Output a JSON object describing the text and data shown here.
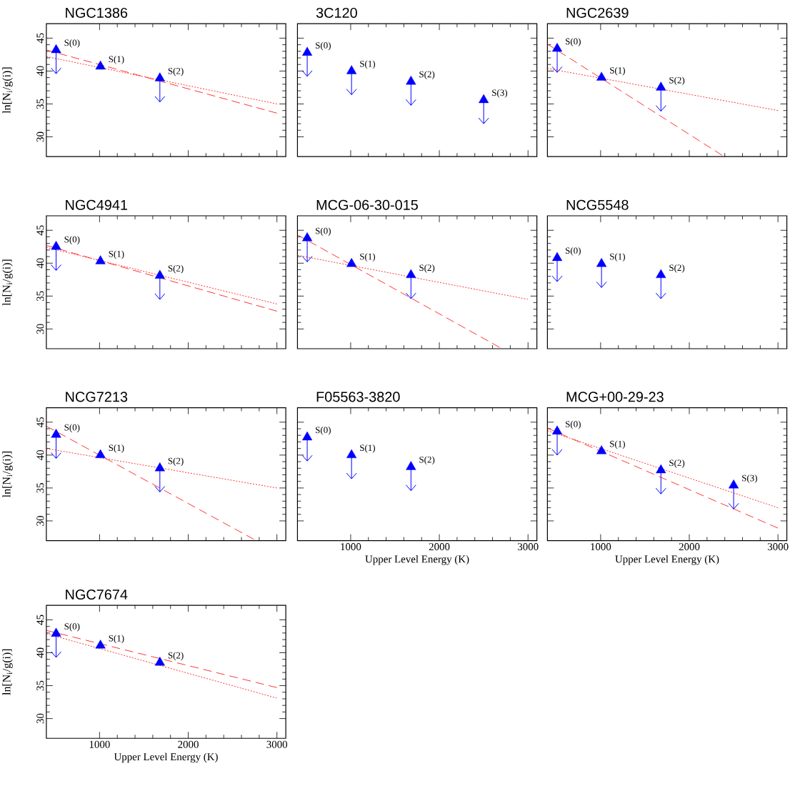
{
  "chart_data": [
    {
      "type": "scatter",
      "title": "NGC1386",
      "ylabel": "ln[N$_{i}$/g(i)]",
      "xlim": [
        400,
        3100
      ],
      "ylim": [
        27,
        47.2
      ],
      "xticks": [
        1000,
        2000,
        3000
      ],
      "yticks": [
        30,
        35,
        40,
        45
      ],
      "tick_labels": "y",
      "series": [
        {
          "marker": "triangle",
          "color": "#0000ff",
          "x": [
            510,
            1010,
            1680
          ],
          "values": [
            43.2,
            40.7,
            38.9
          ],
          "errors": [
            [
              39.6,
              43.2
            ],
            null,
            [
              35.3,
              38.9
            ]
          ]
        },
        {
          "type": "line",
          "line_style": "dashed",
          "color": "#ff0000",
          "x": [
            400,
            3000
          ],
          "values": [
            43.2,
            33.6
          ]
        },
        {
          "type": "line",
          "line_style": "dotted",
          "color": "#ff0000",
          "x": [
            400,
            3000
          ],
          "values": [
            42.2,
            35.0
          ]
        }
      ],
      "annotations": [
        {
          "text": "S(0)",
          "x": 510,
          "y": 43.2
        },
        {
          "text": "S(1)",
          "x": 1010,
          "y": 40.7
        },
        {
          "text": "S(2)",
          "x": 1680,
          "y": 38.9
        }
      ]
    },
    {
      "type": "scatter",
      "title": "3C120",
      "xlim": [
        400,
        3100
      ],
      "ylim": [
        27,
        47.2
      ],
      "xticks": [
        1000,
        2000,
        3000
      ],
      "yticks": [
        30,
        35,
        40,
        45
      ],
      "tick_labels": false,
      "series": [
        {
          "marker": "triangle",
          "color": "#0000ff",
          "x": [
            510,
            1010,
            1680,
            2500
          ],
          "values": [
            42.8,
            40.0,
            38.4,
            35.6
          ],
          "errors": [
            [
              39.2,
              42.8
            ],
            [
              36.4,
              40.0
            ],
            [
              34.8,
              38.4
            ],
            [
              32.0,
              35.6
            ]
          ]
        }
      ],
      "annotations": [
        {
          "text": "S(0)",
          "x": 510,
          "y": 42.8
        },
        {
          "text": "S(1)",
          "x": 1010,
          "y": 40.0
        },
        {
          "text": "S(2)",
          "x": 1680,
          "y": 38.4
        },
        {
          "text": "S(3)",
          "x": 2500,
          "y": 35.6
        }
      ]
    },
    {
      "type": "scatter",
      "title": "NGC2639",
      "xlim": [
        400,
        3100
      ],
      "ylim": [
        27,
        47.2
      ],
      "xticks": [
        1000,
        2000,
        3000
      ],
      "yticks": [
        30,
        35,
        40,
        45
      ],
      "tick_labels": false,
      "series": [
        {
          "marker": "triangle",
          "color": "#0000ff",
          "x": [
            510,
            1010,
            1680
          ],
          "values": [
            43.4,
            39.0,
            37.5
          ],
          "errors": [
            [
              39.8,
              43.4
            ],
            null,
            [
              33.9,
              37.5
            ]
          ]
        },
        {
          "type": "line",
          "line_style": "dashed",
          "color": "#ff0000",
          "x": [
            400,
            2370
          ],
          "values": [
            44.1,
            27.2
          ]
        },
        {
          "type": "line",
          "line_style": "dotted",
          "color": "#ff0000",
          "x": [
            400,
            3000
          ],
          "values": [
            40.4,
            34.0
          ]
        }
      ],
      "annotations": [
        {
          "text": "S(0)",
          "x": 510,
          "y": 43.4
        },
        {
          "text": "S(1)",
          "x": 1010,
          "y": 39.0
        },
        {
          "text": "S(2)",
          "x": 1680,
          "y": 37.5
        }
      ]
    },
    {
      "type": "scatter",
      "title": "NGC4941",
      "ylabel": "ln[N$_{i}$/g(i)]",
      "xlim": [
        400,
        3100
      ],
      "ylim": [
        27,
        47.2
      ],
      "xticks": [
        1000,
        2000,
        3000
      ],
      "yticks": [
        30,
        35,
        40,
        45
      ],
      "tick_labels": "y",
      "series": [
        {
          "marker": "triangle",
          "color": "#0000ff",
          "x": [
            510,
            1010,
            1680
          ],
          "values": [
            42.5,
            40.3,
            38.1
          ],
          "errors": [
            [
              38.9,
              42.5
            ],
            null,
            [
              34.5,
              38.1
            ]
          ]
        },
        {
          "type": "line",
          "line_style": "dashed",
          "color": "#ff0000",
          "x": [
            400,
            3000
          ],
          "values": [
            42.7,
            32.7
          ]
        },
        {
          "type": "line",
          "line_style": "dotted",
          "color": "#ff0000",
          "x": [
            400,
            3000
          ],
          "values": [
            42.4,
            33.8
          ]
        }
      ],
      "annotations": [
        {
          "text": "S(0)",
          "x": 510,
          "y": 42.5
        },
        {
          "text": "S(1)",
          "x": 1010,
          "y": 40.3
        },
        {
          "text": "S(2)",
          "x": 1680,
          "y": 38.1
        }
      ]
    },
    {
      "type": "scatter",
      "title": "MCG-06-30-015",
      "xlim": [
        400,
        3100
      ],
      "ylim": [
        27,
        47.2
      ],
      "xticks": [
        1000,
        2000,
        3000
      ],
      "yticks": [
        30,
        35,
        40,
        45
      ],
      "tick_labels": false,
      "series": [
        {
          "marker": "triangle",
          "color": "#0000ff",
          "x": [
            510,
            1010,
            1680
          ],
          "values": [
            43.8,
            39.9,
            38.2
          ],
          "errors": [
            [
              40.2,
              43.8
            ],
            null,
            [
              34.6,
              38.2
            ]
          ]
        },
        {
          "type": "line",
          "line_style": "dashed",
          "color": "#ff0000",
          "x": [
            400,
            2680
          ],
          "values": [
            44.3,
            27.2
          ]
        },
        {
          "type": "line",
          "line_style": "dotted",
          "color": "#ff0000",
          "x": [
            400,
            3000
          ],
          "values": [
            41.2,
            34.5
          ]
        }
      ],
      "annotations": [
        {
          "text": "S(0)",
          "x": 510,
          "y": 43.8
        },
        {
          "text": "S(1)",
          "x": 1010,
          "y": 39.9
        },
        {
          "text": "S(2)",
          "x": 1680,
          "y": 38.2
        }
      ]
    },
    {
      "type": "scatter",
      "title": "NCG5548",
      "xlim": [
        400,
        3100
      ],
      "ylim": [
        27,
        47.2
      ],
      "xticks": [
        1000,
        2000,
        3000
      ],
      "yticks": [
        30,
        35,
        40,
        45
      ],
      "tick_labels": false,
      "series": [
        {
          "marker": "triangle",
          "color": "#0000ff",
          "x": [
            510,
            1010,
            1680
          ],
          "values": [
            40.8,
            39.9,
            38.2
          ],
          "errors": [
            [
              37.2,
              40.8
            ],
            [
              36.3,
              39.9
            ],
            [
              34.6,
              38.2
            ]
          ]
        }
      ],
      "annotations": [
        {
          "text": "S(0)",
          "x": 510,
          "y": 40.8
        },
        {
          "text": "S(1)",
          "x": 1010,
          "y": 39.9
        },
        {
          "text": "S(2)",
          "x": 1680,
          "y": 38.2
        }
      ]
    },
    {
      "type": "scatter",
      "title": "NCG7213",
      "ylabel": "ln[N$_{i}$/g(i)]",
      "xlim": [
        400,
        3100
      ],
      "ylim": [
        27,
        47.2
      ],
      "xticks": [
        1000,
        2000,
        3000
      ],
      "yticks": [
        30,
        35,
        40,
        45
      ],
      "tick_labels": "y",
      "series": [
        {
          "marker": "triangle",
          "color": "#0000ff",
          "x": [
            510,
            1010,
            1680
          ],
          "values": [
            43.1,
            40.0,
            38.0
          ],
          "errors": [
            [
              39.5,
              43.1
            ],
            null,
            [
              34.4,
              38.0
            ]
          ]
        },
        {
          "type": "line",
          "line_style": "dashed",
          "color": "#ff0000",
          "x": [
            400,
            2740
          ],
          "values": [
            44.4,
            27.2
          ]
        },
        {
          "type": "line",
          "line_style": "dotted",
          "color": "#ff0000",
          "x": [
            400,
            3000
          ],
          "values": [
            41.0,
            35.0
          ]
        }
      ],
      "annotations": [
        {
          "text": "S(0)",
          "x": 510,
          "y": 43.1
        },
        {
          "text": "S(1)",
          "x": 1010,
          "y": 40.0
        },
        {
          "text": "S(2)",
          "x": 1680,
          "y": 38.0
        }
      ]
    },
    {
      "type": "scatter",
      "title": "F05563-3820",
      "xlabel": "Upper Level Energy (K)",
      "xlim": [
        400,
        3100
      ],
      "ylim": [
        27,
        47.2
      ],
      "xticks": [
        1000,
        2000,
        3000
      ],
      "yticks": [
        30,
        35,
        40,
        45
      ],
      "tick_labels": "x",
      "series": [
        {
          "marker": "triangle",
          "color": "#0000ff",
          "x": [
            510,
            1010,
            1680
          ],
          "values": [
            42.7,
            40.0,
            38.2
          ],
          "errors": [
            [
              39.1,
              42.7
            ],
            [
              36.4,
              40.0
            ],
            [
              34.6,
              38.2
            ]
          ]
        }
      ],
      "annotations": [
        {
          "text": "S(0)",
          "x": 510,
          "y": 42.7
        },
        {
          "text": "S(1)",
          "x": 1010,
          "y": 40.0
        },
        {
          "text": "S(2)",
          "x": 1680,
          "y": 38.2
        }
      ]
    },
    {
      "type": "scatter",
      "title": "MCG+00-29-23",
      "xlabel": "Upper Level Energy (K)",
      "xlim": [
        400,
        3100
      ],
      "ylim": [
        27,
        47.2
      ],
      "xticks": [
        1000,
        2000,
        3000
      ],
      "yticks": [
        30,
        35,
        40,
        45
      ],
      "tick_labels": "x",
      "series": [
        {
          "marker": "triangle",
          "color": "#0000ff",
          "x": [
            510,
            1010,
            1680,
            2500
          ],
          "values": [
            43.6,
            40.6,
            37.7,
            35.4
          ],
          "errors": [
            [
              40.0,
              43.6
            ],
            null,
            [
              34.1,
              37.7
            ],
            [
              31.8,
              35.4
            ]
          ]
        },
        {
          "type": "line",
          "line_style": "dashed",
          "color": "#ff0000",
          "x": [
            400,
            3000
          ],
          "values": [
            44.1,
            28.9
          ]
        },
        {
          "type": "line",
          "line_style": "dotted",
          "color": "#ff0000",
          "x": [
            400,
            3000
          ],
          "values": [
            43.7,
            32.0
          ]
        }
      ],
      "annotations": [
        {
          "text": "S(0)",
          "x": 510,
          "y": 43.6
        },
        {
          "text": "S(1)",
          "x": 1010,
          "y": 40.6
        },
        {
          "text": "S(2)",
          "x": 1680,
          "y": 37.7
        },
        {
          "text": "S(3)",
          "x": 2500,
          "y": 35.4
        }
      ]
    },
    {
      "type": "scatter",
      "title": "NGC7674",
      "xlabel": "Upper Level Energy (K)",
      "ylabel": "ln[N$_{i}$/g(i)]",
      "xlim": [
        400,
        3100
      ],
      "ylim": [
        27,
        47.2
      ],
      "xticks": [
        1000,
        2000,
        3000
      ],
      "yticks": [
        30,
        35,
        40,
        45
      ],
      "series": [
        {
          "marker": "triangle",
          "color": "#0000ff",
          "x": [
            510,
            1010,
            1680
          ],
          "values": [
            42.9,
            41.1,
            38.5
          ],
          "errors": [
            [
              39.3,
              42.9
            ],
            null,
            null
          ]
        },
        {
          "type": "line",
          "line_style": "dashed",
          "color": "#ff0000",
          "x": [
            400,
            3000
          ],
          "values": [
            43.4,
            34.7
          ]
        },
        {
          "type": "line",
          "line_style": "dotted",
          "color": "#ff0000",
          "x": [
            400,
            3000
          ],
          "values": [
            42.9,
            33.1
          ]
        }
      ],
      "annotations": [
        {
          "text": "S(0)",
          "x": 510,
          "y": 42.9
        },
        {
          "text": "S(1)",
          "x": 1010,
          "y": 41.1
        },
        {
          "text": "S(2)",
          "x": 1680,
          "y": 38.5
        }
      ]
    }
  ]
}
